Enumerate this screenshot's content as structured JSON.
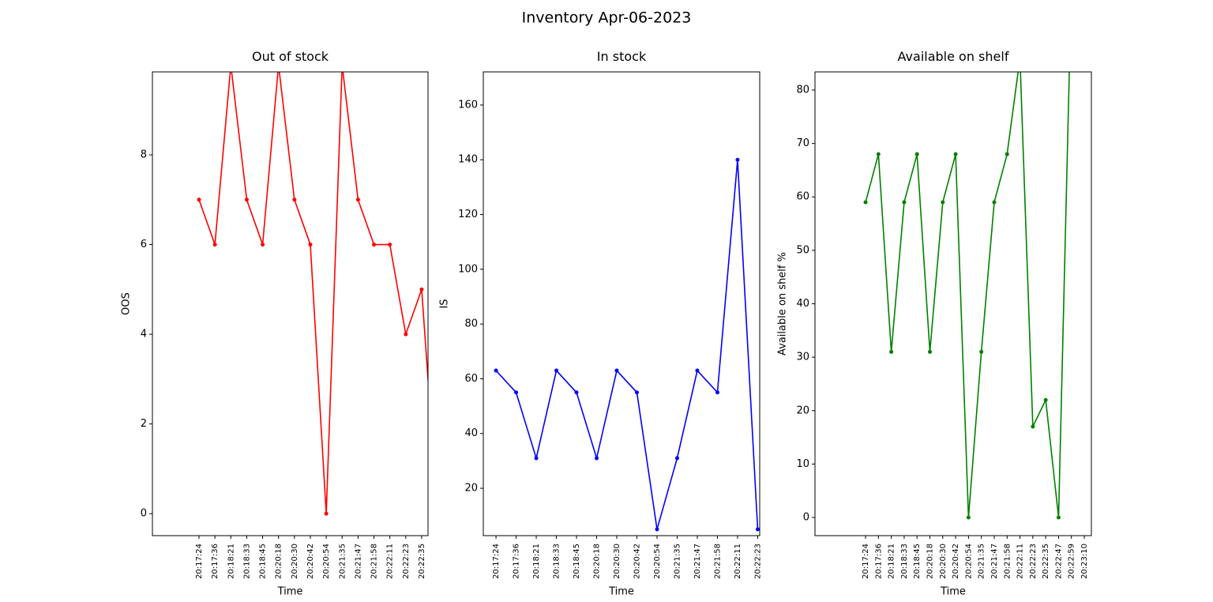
{
  "title": "Inventory Apr-06-2023",
  "chart_data": [
    {
      "type": "line",
      "title": "Out of stock",
      "x_label": "Time",
      "y_label": "OOS",
      "categories": [
        "20:17:24",
        "20:17:36",
        "20:18:21",
        "20:18:33",
        "20:18:45",
        "20:20:18",
        "20:20:30",
        "20:20:42",
        "20:20:54",
        "20:21:35",
        "20:21:47",
        "20:21:58",
        "20:22:11",
        "20:22:23",
        "20:22:35",
        null
      ],
      "series": [
        {
          "name": "OOS",
          "color": "red",
          "values": [
            7,
            6,
            10,
            7,
            6,
            10,
            7,
            6,
            0,
            10,
            7,
            6,
            6,
            4,
            5,
            0
          ]
        }
      ],
      "xlim": [
        -2.93,
        14.4
      ],
      "ylim": [
        -0.49,
        9.85
      ],
      "yticks": [
        0,
        2,
        4,
        6,
        8
      ]
    },
    {
      "type": "line",
      "title": "In stock",
      "x_label": "Time",
      "y_label": "IS",
      "categories": [
        "20:17:24",
        "20:17:36",
        "20:18:21",
        "20:18:33",
        "20:18:45",
        "20:20:18",
        "20:20:30",
        "20:20:42",
        "20:20:54",
        "20:21:35",
        "20:21:47",
        "20:21:58",
        "20:22:11",
        "20:22:23"
      ],
      "series": [
        {
          "name": "IS",
          "color": "blue",
          "values": [
            63,
            55,
            31,
            63,
            55,
            31,
            63,
            55,
            5,
            31,
            63,
            55,
            140,
            5
          ]
        }
      ],
      "xlim": [
        -0.63,
        13.1
      ],
      "ylim": [
        2.7,
        172.1
      ],
      "yticks": [
        20,
        40,
        60,
        80,
        100,
        120,
        140,
        160
      ]
    },
    {
      "type": "line",
      "title": "Available on shelf",
      "x_label": "Time",
      "y_label": "Available on shelf %",
      "categories": [
        "20:17:24",
        "20:17:36",
        "20:18:21",
        "20:18:33",
        "20:18:45",
        "20:20:18",
        "20:20:30",
        "20:20:42",
        "20:20:54",
        "20:21:35",
        "20:21:47",
        "20:21:58",
        "20:22:11",
        "20:22:23",
        "20:22:35",
        "20:22:47",
        "20:22:59",
        "20:23:10"
      ],
      "series": [
        {
          "name": "Available on shelf %",
          "color": "green",
          "values": [
            59,
            68,
            31,
            59,
            68,
            31,
            59,
            68,
            0,
            31,
            59,
            68,
            86,
            17,
            22,
            0,
            100,
            null
          ]
        }
      ],
      "xlim": [
        -3.93,
        17.55
      ],
      "ylim": [
        -3.4,
        83.4
      ],
      "yticks": [
        0,
        10,
        20,
        30,
        40,
        50,
        60,
        70,
        80
      ]
    }
  ]
}
